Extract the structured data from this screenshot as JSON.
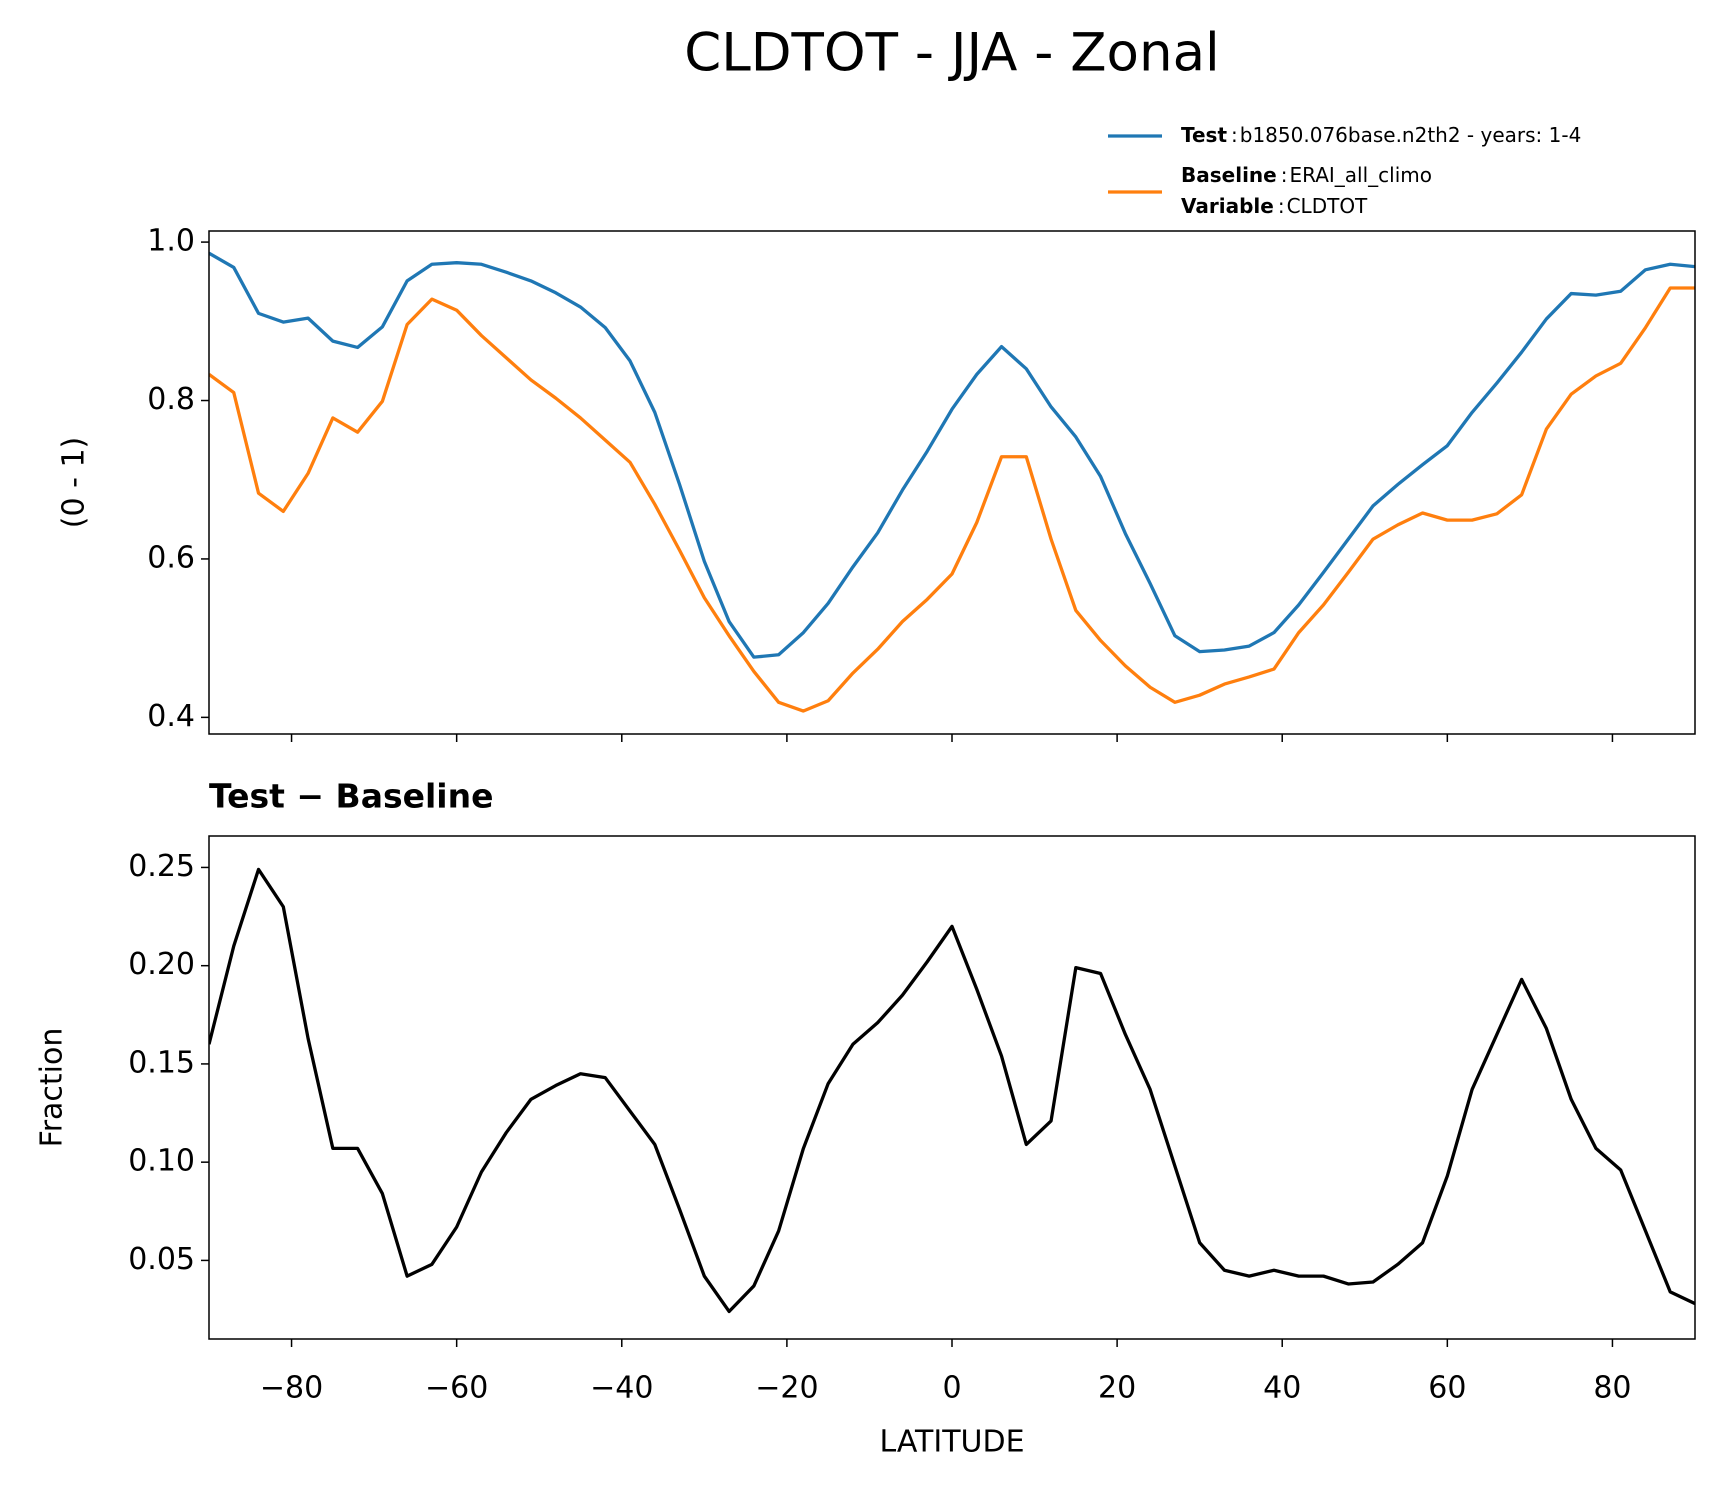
{
  "title": "CLDTOT - JJA - Zonal",
  "chart_data": [
    {
      "type": "line",
      "ylabel": "(0 - 1)",
      "x": [
        -90,
        -87,
        -84,
        -81,
        -78,
        -75,
        -72,
        -69,
        -66,
        -63,
        -60,
        -57,
        -54,
        -51,
        -48,
        -45,
        -42,
        -39,
        -36,
        -33,
        -30,
        -27,
        -24,
        -21,
        -18,
        -15,
        -12,
        -9,
        -6,
        -3,
        0,
        3,
        6,
        9,
        12,
        15,
        18,
        21,
        24,
        27,
        30,
        33,
        36,
        39,
        42,
        45,
        48,
        51,
        54,
        57,
        60,
        63,
        66,
        69,
        72,
        75,
        78,
        81,
        84,
        87,
        90
      ],
      "series": [
        {
          "name": "Test",
          "label": "b1850.076base.n2th2 - years: 1-4",
          "color": "#1f77b4",
          "values": [
            0.986,
            0.968,
            0.91,
            0.899,
            0.904,
            0.875,
            0.867,
            0.893,
            0.951,
            0.972,
            0.974,
            0.972,
            0.962,
            0.951,
            0.936,
            0.918,
            0.892,
            0.85,
            0.785,
            0.694,
            0.597,
            0.521,
            0.476,
            0.479,
            0.507,
            0.544,
            0.59,
            0.633,
            0.687,
            0.736,
            0.789,
            0.833,
            0.868,
            0.84,
            0.792,
            0.754,
            0.704,
            0.632,
            0.569,
            0.503,
            0.483,
            0.485,
            0.49,
            0.507,
            0.542,
            0.583,
            0.625,
            0.667,
            0.694,
            0.719,
            0.743,
            0.785,
            0.822,
            0.861,
            0.903,
            0.935,
            0.933,
            0.938,
            0.965,
            0.972,
            0.969
          ]
        },
        {
          "name": "Baseline",
          "label": "ERAI_all_climo",
          "color": "#ff7f0e",
          "values": [
            0.833,
            0.81,
            0.683,
            0.66,
            0.708,
            0.778,
            0.76,
            0.799,
            0.896,
            0.928,
            0.914,
            0.882,
            0.854,
            0.826,
            0.803,
            0.778,
            0.75,
            0.722,
            0.669,
            0.611,
            0.551,
            0.503,
            0.458,
            0.419,
            0.408,
            0.421,
            0.456,
            0.486,
            0.521,
            0.549,
            0.581,
            0.646,
            0.729,
            0.729,
            0.625,
            0.535,
            0.497,
            0.465,
            0.438,
            0.419,
            0.428,
            0.442,
            0.451,
            0.461,
            0.507,
            0.542,
            0.583,
            0.625,
            0.643,
            0.658,
            0.649,
            0.649,
            0.657,
            0.681,
            0.764,
            0.808,
            0.831,
            0.847,
            0.892,
            0.942,
            0.942
          ]
        }
      ],
      "legend_extra": {
        "name": "Variable",
        "label": "CLDTOT"
      },
      "legend_separator": ":",
      "legend": "upper right",
      "xlim": [
        -90,
        90
      ],
      "xticks": [
        -80,
        -60,
        -40,
        -20,
        0,
        20,
        40,
        60,
        80
      ],
      "show_xtick_labels": false,
      "ylim": [
        0.379,
        1.014
      ],
      "yticks": [
        0.4,
        0.6,
        0.8,
        {
          "value": 1,
          "label": "1.0"
        }
      ]
    },
    {
      "type": "line",
      "title": "Test − Baseline",
      "xlabel": "LATITUDE",
      "ylabel": "Fraction",
      "x": [
        -90,
        -87,
        -84,
        -81,
        -78,
        -75,
        -72,
        -69,
        -66,
        -63,
        -60,
        -57,
        -54,
        -51,
        -48,
        -45,
        -42,
        -39,
        -36,
        -33,
        -30,
        -27,
        -24,
        -21,
        -18,
        -15,
        -12,
        -9,
        -6,
        -3,
        0,
        3,
        6,
        9,
        12,
        15,
        18,
        21,
        24,
        27,
        30,
        33,
        36,
        39,
        42,
        45,
        48,
        51,
        54,
        57,
        60,
        63,
        66,
        69,
        72,
        75,
        78,
        81,
        84,
        87,
        90
      ],
      "series": [
        {
          "color": "#000000",
          "values": [
            0.16,
            0.21,
            0.249,
            0.23,
            0.163,
            0.107,
            0.107,
            0.084,
            0.042,
            0.048,
            0.067,
            0.095,
            0.115,
            0.132,
            0.139,
            0.145,
            0.143,
            0.126,
            0.109,
            0.076,
            0.042,
            0.024,
            0.037,
            0.065,
            0.107,
            0.14,
            0.16,
            0.171,
            0.185,
            0.202,
            0.22,
            0.188,
            0.154,
            0.109,
            0.121,
            0.199,
            0.196,
            0.165,
            0.137,
            0.098,
            0.059,
            0.045,
            0.042,
            0.045,
            0.042,
            0.042,
            0.038,
            0.039,
            0.048,
            0.059,
            0.093,
            0.137,
            0.165,
            0.193,
            0.168,
            0.132,
            0.107,
            0.096,
            0.065,
            0.034,
            0.028
          ]
        }
      ],
      "xlim": [
        -90,
        90
      ],
      "xticks": [
        {
          "value": -80,
          "label": "−80"
        },
        {
          "value": -60,
          "label": "−60"
        },
        {
          "value": -40,
          "label": "−40"
        },
        {
          "value": -20,
          "label": "−20"
        },
        0,
        20,
        40,
        60,
        80
      ],
      "show_xtick_labels": true,
      "ylim": [
        0.01,
        0.266
      ],
      "yticks": [
        0.05,
        {
          "value": 0.1,
          "label": "0.10"
        },
        0.15,
        {
          "value": 0.2,
          "label": "0.20"
        },
        0.25
      ]
    }
  ]
}
